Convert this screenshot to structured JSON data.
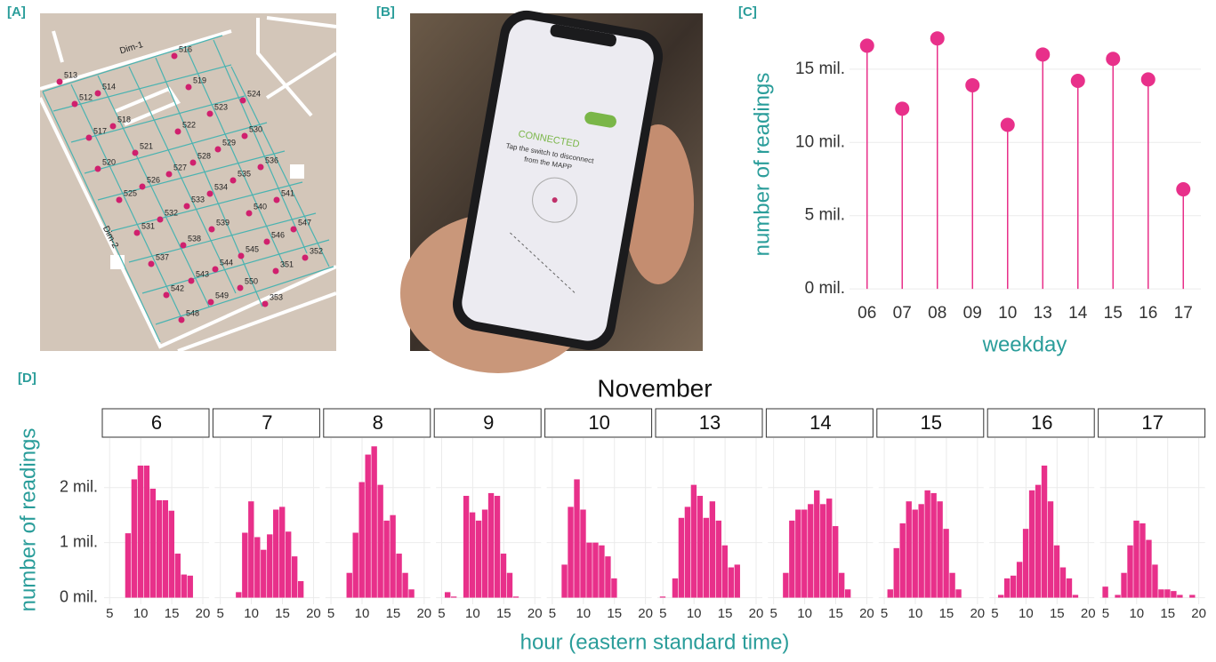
{
  "panels": [
    "[A]",
    "[B]",
    "[C]",
    "[D]"
  ],
  "map": {
    "labels": [
      "Dim-1",
      "Dim-2"
    ],
    "nodes": [
      "513",
      "512",
      "514",
      "516",
      "519",
      "524",
      "518",
      "517",
      "522",
      "523",
      "530",
      "521",
      "529",
      "520",
      "528",
      "536",
      "527",
      "526",
      "525",
      "535",
      "534",
      "541",
      "533",
      "532",
      "540",
      "531",
      "539",
      "547",
      "546",
      "538",
      "545",
      "537",
      "352",
      "544",
      "351",
      "543",
      "542",
      "550",
      "549",
      "353",
      "548"
    ]
  },
  "photo": {
    "status": "CONNECTED",
    "message": [
      "Tap the switch to disconnect",
      "from the MAPP"
    ]
  },
  "chart_data": [
    {
      "type": "lollipop",
      "x_label": "weekday",
      "y_label": "number of readings",
      "color": "#e8308a",
      "categories": [
        "06",
        "07",
        "08",
        "09",
        "10",
        "13",
        "14",
        "15",
        "16",
        "17"
      ],
      "values": [
        16.6,
        12.3,
        17.1,
        13.9,
        11.2,
        16.0,
        14.2,
        15.7,
        14.3,
        6.8
      ],
      "ylim": [
        -0.9,
        17.9
      ],
      "yticks": [
        {
          "value": 0,
          "label": "0 mil."
        },
        {
          "value": 5,
          "label": "5 mil."
        },
        {
          "value": 10,
          "label": "10 mil."
        },
        {
          "value": 15,
          "label": "15 mil."
        }
      ],
      "grid": true
    },
    {
      "type": "faceted-histogram",
      "title": "November",
      "x_label": "hour (eastern standard time)",
      "y_label": "number of readings",
      "color": "#e8308a",
      "bins": [
        4.5,
        5.5,
        6.5,
        7.5,
        8.5,
        9.5,
        10.5,
        11.5,
        12.5,
        13.5,
        14.5,
        15.5,
        16.5,
        17.5,
        18.5,
        19.5,
        20.5
      ],
      "xlim": [
        4.1,
        21
      ],
      "xticks": [
        5,
        10,
        15,
        20
      ],
      "ylim": [
        -0.12,
        2.9
      ],
      "yticks": [
        {
          "value": 0,
          "label": "0 mil."
        },
        {
          "value": 1,
          "label": "1 mil."
        },
        {
          "value": 2,
          "label": "2 mil."
        }
      ],
      "grid": true,
      "facets": [
        {
          "title": "6",
          "values": [
            0,
            0,
            0,
            1.17,
            2.15,
            2.4,
            2.4,
            1.98,
            1.77,
            1.77,
            1.58,
            0.8,
            0.42,
            0.4,
            0,
            0
          ]
        },
        {
          "title": "7",
          "values": [
            0,
            0,
            0,
            0.1,
            1.18,
            1.75,
            1.1,
            0.87,
            1.15,
            1.6,
            1.65,
            1.2,
            0.75,
            0.3,
            0,
            0
          ]
        },
        {
          "title": "8",
          "values": [
            0,
            0,
            0,
            0.45,
            1.18,
            2.1,
            2.6,
            2.75,
            2.05,
            1.4,
            1.5,
            0.8,
            0.45,
            0.15,
            0,
            0
          ]
        },
        {
          "title": "9",
          "values": [
            0,
            0.1,
            0.02,
            0,
            1.85,
            1.55,
            1.4,
            1.6,
            1.9,
            1.85,
            0.8,
            0.45,
            0.02,
            0,
            0,
            0
          ]
        },
        {
          "title": "10",
          "values": [
            0,
            0,
            0.6,
            1.65,
            2.15,
            1.6,
            1.0,
            1.0,
            0.95,
            0.75,
            0.35,
            0,
            0,
            0,
            0,
            0
          ]
        },
        {
          "title": "13",
          "values": [
            0.02,
            0,
            0.35,
            1.45,
            1.65,
            2.05,
            1.85,
            1.45,
            1.75,
            1.4,
            0.95,
            0.55,
            0.6,
            0,
            0,
            0
          ]
        },
        {
          "title": "14",
          "values": [
            0,
            0,
            0.45,
            1.4,
            1.6,
            1.6,
            1.7,
            1.95,
            1.7,
            1.8,
            1.3,
            0.45,
            0.15,
            0,
            0,
            0
          ]
        },
        {
          "title": "15",
          "values": [
            0,
            0.15,
            0.9,
            1.35,
            1.75,
            1.6,
            1.7,
            1.95,
            1.9,
            1.75,
            1.25,
            0.45,
            0.15,
            0,
            0,
            0
          ]
        },
        {
          "title": "16",
          "values": [
            0,
            0.05,
            0.35,
            0.4,
            0.65,
            1.25,
            1.95,
            2.05,
            2.4,
            1.75,
            0.95,
            0.55,
            0.35,
            0.05,
            0,
            0
          ]
        },
        {
          "title": "17",
          "values": [
            0.2,
            0,
            0.05,
            0.45,
            0.95,
            1.4,
            1.35,
            1.05,
            0.6,
            0.15,
            0.15,
            0.12,
            0.05,
            0,
            0.05,
            0
          ]
        }
      ]
    }
  ]
}
